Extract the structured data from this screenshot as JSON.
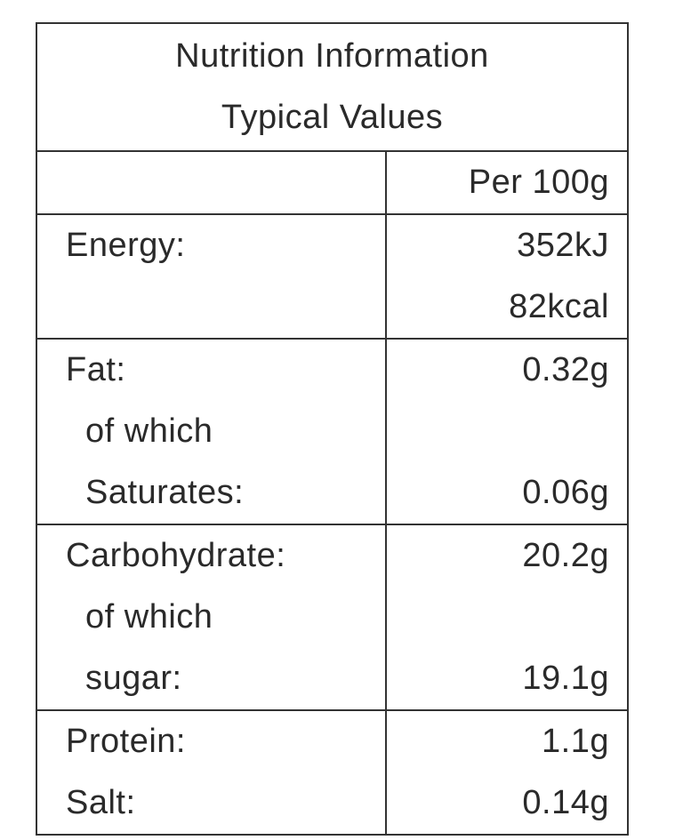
{
  "title": [
    "Nutrition Information",
    "Typical Values"
  ],
  "table": {
    "header": "Per 100g",
    "sections": [
      [
        {
          "label": "Energy:",
          "values": [
            "352kJ",
            "82kcal"
          ]
        }
      ],
      [
        {
          "label": "Fat:",
          "values": [
            "0.32g"
          ],
          "of_which": {
            "label": [
              "of which",
              "Saturates:"
            ],
            "value": "0.06g"
          }
        }
      ],
      [
        {
          "label": "Carbohydrate:",
          "values": [
            "20.2g"
          ],
          "of_which": {
            "label": [
              "of which",
              "sugar:"
            ],
            "value": "19.1g"
          }
        }
      ],
      [
        {
          "label": "Protein:",
          "values": [
            "1.1g"
          ]
        },
        {
          "label": "Salt:",
          "values": [
            "0.14g"
          ]
        }
      ]
    ]
  }
}
